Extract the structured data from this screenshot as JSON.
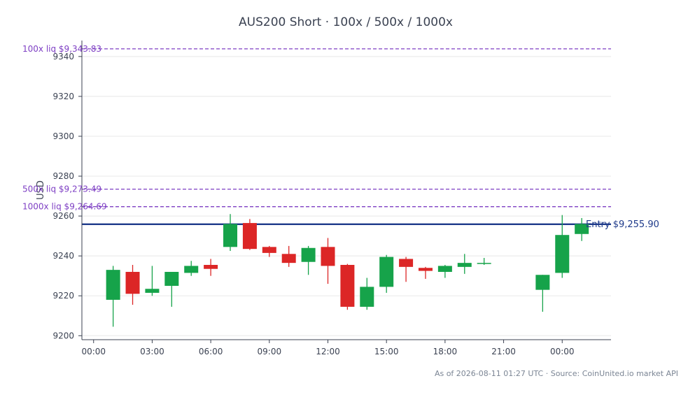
{
  "chart_data": {
    "type": "candlestick",
    "title": "AUS200 Short · 100x / 500x / 1000x",
    "ylabel": "USD",
    "xlabel": "",
    "ylim": [
      9198,
      9348
    ],
    "y_ticks": [
      9200,
      9220,
      9240,
      9260,
      9280,
      9300,
      9320,
      9340
    ],
    "x_ticks": [
      {
        "hour": 0,
        "label": "00:00"
      },
      {
        "hour": 3,
        "label": "03:00"
      },
      {
        "hour": 6,
        "label": "06:00"
      },
      {
        "hour": 9,
        "label": "09:00"
      },
      {
        "hour": 12,
        "label": "12:00"
      },
      {
        "hour": 15,
        "label": "15:00"
      },
      {
        "hour": 18,
        "label": "18:00"
      },
      {
        "hour": 21,
        "label": "21:00"
      },
      {
        "hour": 24,
        "label": "00:00"
      }
    ],
    "xlim_hours": [
      -0.6,
      26.5
    ],
    "grid": true,
    "colors": {
      "up": "#16a34a",
      "down": "#dc2626",
      "entry": "#1e3a8a",
      "liq": "#7e3fc4",
      "text": "#3b4252"
    },
    "candles": [
      {
        "hour": 1,
        "open": 9218.0,
        "high": 9235.0,
        "low": 9204.5,
        "close": 9233.0
      },
      {
        "hour": 2,
        "open": 9232.0,
        "high": 9235.5,
        "low": 9215.5,
        "close": 9221.0
      },
      {
        "hour": 3,
        "open": 9221.5,
        "high": 9235.0,
        "low": 9220.0,
        "close": 9223.5
      },
      {
        "hour": 4,
        "open": 9225.0,
        "high": 9232.0,
        "low": 9214.5,
        "close": 9232.0
      },
      {
        "hour": 5,
        "open": 9231.5,
        "high": 9237.5,
        "low": 9230.0,
        "close": 9235.0
      },
      {
        "hour": 6,
        "open": 9235.5,
        "high": 9238.5,
        "low": 9230.0,
        "close": 9233.5
      },
      {
        "hour": 7,
        "open": 9244.5,
        "high": 9261.0,
        "low": 9242.5,
        "close": 9256.0
      },
      {
        "hour": 8,
        "open": 9256.5,
        "high": 9258.5,
        "low": 9243.0,
        "close": 9243.5
      },
      {
        "hour": 9,
        "open": 9244.5,
        "high": 9245.0,
        "low": 9239.5,
        "close": 9241.5
      },
      {
        "hour": 10,
        "open": 9241.0,
        "high": 9245.0,
        "low": 9234.5,
        "close": 9236.5
      },
      {
        "hour": 11,
        "open": 9237.0,
        "high": 9245.0,
        "low": 9230.5,
        "close": 9244.0
      },
      {
        "hour": 12,
        "open": 9244.5,
        "high": 9249.0,
        "low": 9226.0,
        "close": 9235.0
      },
      {
        "hour": 13,
        "open": 9235.5,
        "high": 9236.0,
        "low": 9213.0,
        "close": 9214.5
      },
      {
        "hour": 14,
        "open": 9214.5,
        "high": 9229.0,
        "low": 9213.0,
        "close": 9224.5
      },
      {
        "hour": 15,
        "open": 9224.5,
        "high": 9240.5,
        "low": 9221.5,
        "close": 9239.5
      },
      {
        "hour": 16,
        "open": 9238.5,
        "high": 9239.5,
        "low": 9227.0,
        "close": 9234.5
      },
      {
        "hour": 17,
        "open": 9234.0,
        "high": 9234.5,
        "low": 9228.5,
        "close": 9232.5
      },
      {
        "hour": 18,
        "open": 9232.0,
        "high": 9235.5,
        "low": 9229.0,
        "close": 9235.0
      },
      {
        "hour": 19,
        "open": 9234.5,
        "high": 9241.0,
        "low": 9231.0,
        "close": 9236.5
      },
      {
        "hour": 20,
        "open": 9236.0,
        "high": 9239.0,
        "low": 9235.5,
        "close": 9236.5
      },
      {
        "hour": 23,
        "open": 9223.0,
        "high": 9230.5,
        "low": 9212.0,
        "close": 9230.5
      },
      {
        "hour": 24,
        "open": 9231.5,
        "high": 9260.5,
        "low": 9229.0,
        "close": 9250.5
      },
      {
        "hour": 25,
        "open": 9251.0,
        "high": 9259.0,
        "low": 9247.5,
        "close": 9256.0
      }
    ],
    "reference_lines": [
      {
        "name": "entry",
        "value": 9255.9,
        "label": "Entry $9,255.90",
        "style": "solid"
      },
      {
        "name": "liq-100x",
        "value": 9343.83,
        "label": "100x liq $9,343.83",
        "style": "dashed"
      },
      {
        "name": "liq-500x",
        "value": 9273.49,
        "label": "500x liq $9,273.49",
        "style": "dashed"
      },
      {
        "name": "liq-1000x",
        "value": 9264.69,
        "label": "1000x liq $9,264.69",
        "style": "dashed"
      }
    ],
    "footer": "As of 2026-08-11 01:27 UTC · Source: CoinUnited.io market API"
  }
}
